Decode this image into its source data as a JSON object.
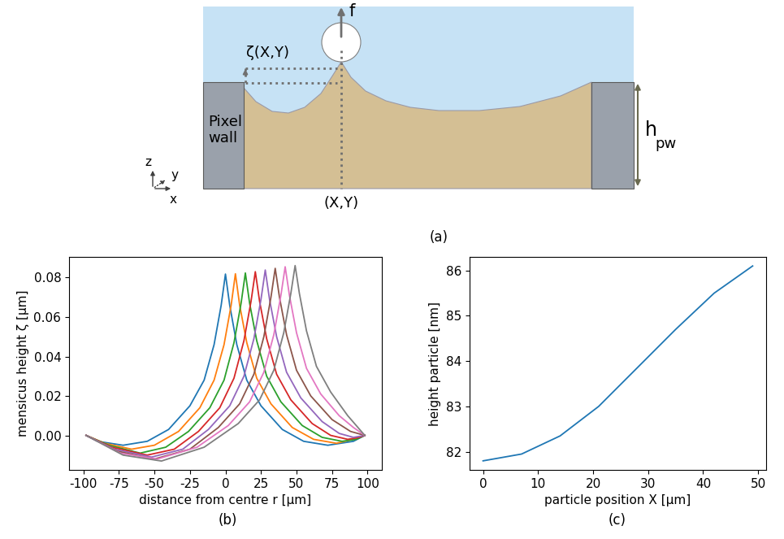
{
  "panels": [
    "(a)",
    "(b)",
    "(c)"
  ],
  "diagram": {
    "force": "f",
    "meniscus": "ζ(X,Y)",
    "wall": [
      "Pixel",
      "wall"
    ],
    "height": {
      "main": "h",
      "subscript": "pw"
    },
    "position": "(X,Y)",
    "axes": {
      "x": "x",
      "y": "y",
      "z": "z"
    }
  },
  "chart_data": [
    {
      "type": "line",
      "xlabel": "distance from centre r [μm]",
      "ylabel": "mensicus height ζ [μm]",
      "xlim": [
        -110,
        110
      ],
      "ylim": [
        -0.0175,
        0.0905
      ],
      "xticks": [
        -100,
        -75,
        -50,
        -25,
        0,
        25,
        50,
        75,
        100
      ],
      "yticks": [
        {
          "value": 0,
          "label": "0.00"
        },
        {
          "value": 0.02,
          "label": "0.02"
        },
        {
          "value": 0.04,
          "label": "0.04"
        },
        {
          "value": 0.06,
          "label": "0.06"
        },
        {
          "value": 0.08,
          "label": "0.08"
        }
      ],
      "series": [
        {
          "color": "#1f77b4",
          "x": [
            -98,
            -90,
            -72,
            -55,
            -40,
            -25,
            -15,
            -8,
            -3,
            0,
            3,
            8,
            15,
            25,
            40,
            55,
            72,
            90,
            98
          ],
          "values": [
            0,
            -0.003,
            -0.005,
            -0.003,
            0.003,
            0.015,
            0.028,
            0.046,
            0.066,
            0.0818,
            0.066,
            0.046,
            0.028,
            0.015,
            0.003,
            -0.003,
            -0.005,
            -0.003,
            0
          ]
        },
        {
          "color": "#ff7f0e",
          "x": [
            -98,
            -85,
            -66,
            -50,
            -33,
            -18,
            -8,
            -1,
            4,
            7,
            10,
            15,
            22,
            32,
            47,
            62,
            78,
            90,
            98
          ],
          "values": [
            0,
            -0.004,
            -0.007,
            -0.005,
            0.002,
            0.014,
            0.028,
            0.046,
            0.066,
            0.08195,
            0.066,
            0.047,
            0.029,
            0.016,
            0.004,
            -0.002,
            -0.004,
            -0.002,
            0
          ]
        },
        {
          "color": "#2ca02c",
          "x": [
            -98,
            -82,
            -60,
            -42,
            -26,
            -11,
            -1,
            6,
            11,
            14,
            17,
            22,
            29,
            39,
            54,
            68,
            82,
            92,
            98
          ],
          "values": [
            0,
            -0.005,
            -0.009,
            -0.006,
            0.002,
            0.014,
            0.028,
            0.047,
            0.067,
            0.08235,
            0.067,
            0.048,
            0.03,
            0.017,
            0.005,
            -0.001,
            -0.003,
            -0.002,
            0
          ]
        },
        {
          "color": "#d62728",
          "x": [
            -98,
            -80,
            -55,
            -36,
            -19,
            -4,
            6,
            13,
            18,
            21,
            24,
            29,
            36,
            46,
            61,
            74,
            86,
            94,
            98
          ],
          "values": [
            0,
            -0.006,
            -0.01,
            -0.007,
            0.002,
            0.014,
            0.029,
            0.048,
            0.068,
            0.083,
            0.068,
            0.049,
            0.031,
            0.018,
            0.006,
            0.0,
            -0.002,
            -0.001,
            0
          ]
        },
        {
          "color": "#9467bd",
          "x": [
            -98,
            -78,
            -52,
            -30,
            -12,
            3,
            13,
            20,
            25,
            28,
            31,
            36,
            43,
            53,
            68,
            80,
            90,
            98
          ],
          "values": [
            0,
            -0.007,
            -0.011,
            -0.007,
            0.003,
            0.015,
            0.03,
            0.049,
            0.069,
            0.08385,
            0.069,
            0.05,
            0.032,
            0.019,
            0.007,
            0.001,
            -0.001,
            0
          ]
        },
        {
          "color": "#8c564b",
          "x": [
            -98,
            -76,
            -50,
            -25,
            -5,
            10,
            20,
            27,
            32,
            35,
            38,
            43,
            50,
            60,
            75,
            88,
            98
          ],
          "values": [
            0,
            -0.008,
            -0.012,
            -0.007,
            0.004,
            0.016,
            0.031,
            0.05,
            0.07,
            0.0847,
            0.07,
            0.051,
            0.033,
            0.02,
            0.008,
            0.002,
            0
          ]
        },
        {
          "color": "#e377c2",
          "x": [
            -98,
            -74,
            -48,
            -20,
            2,
            17,
            27,
            34,
            39,
            42,
            45,
            50,
            57,
            67,
            80,
            90,
            98
          ],
          "values": [
            0,
            -0.009,
            -0.012,
            -0.006,
            0.005,
            0.017,
            0.032,
            0.051,
            0.071,
            0.0855,
            0.071,
            0.052,
            0.034,
            0.021,
            0.01,
            0.004,
            0
          ]
        },
        {
          "color": "#7f7f7f",
          "x": [
            -98,
            -72,
            -45,
            -15,
            9,
            24,
            34,
            41,
            46,
            49,
            52,
            57,
            64,
            74,
            86,
            98
          ],
          "values": [
            0,
            -0.01,
            -0.013,
            -0.006,
            0.006,
            0.018,
            0.033,
            0.052,
            0.072,
            0.0861,
            0.072,
            0.053,
            0.035,
            0.022,
            0.01,
            0
          ]
        }
      ]
    },
    {
      "type": "line",
      "xlabel": "particle position X [μm]",
      "ylabel": "height particle [nm]",
      "xlim": [
        -2.45,
        51.45
      ],
      "ylim": [
        81.6,
        86.3
      ],
      "xticks": [
        0,
        10,
        20,
        30,
        40,
        50
      ],
      "yticks": [
        82,
        83,
        84,
        85,
        86
      ],
      "series": [
        {
          "color": "#1f77b4",
          "x": [
            0,
            7,
            14,
            21,
            28,
            35,
            42,
            49
          ],
          "values": [
            81.8,
            81.95,
            82.35,
            83.0,
            83.85,
            84.7,
            85.5,
            86.1
          ]
        }
      ]
    }
  ]
}
